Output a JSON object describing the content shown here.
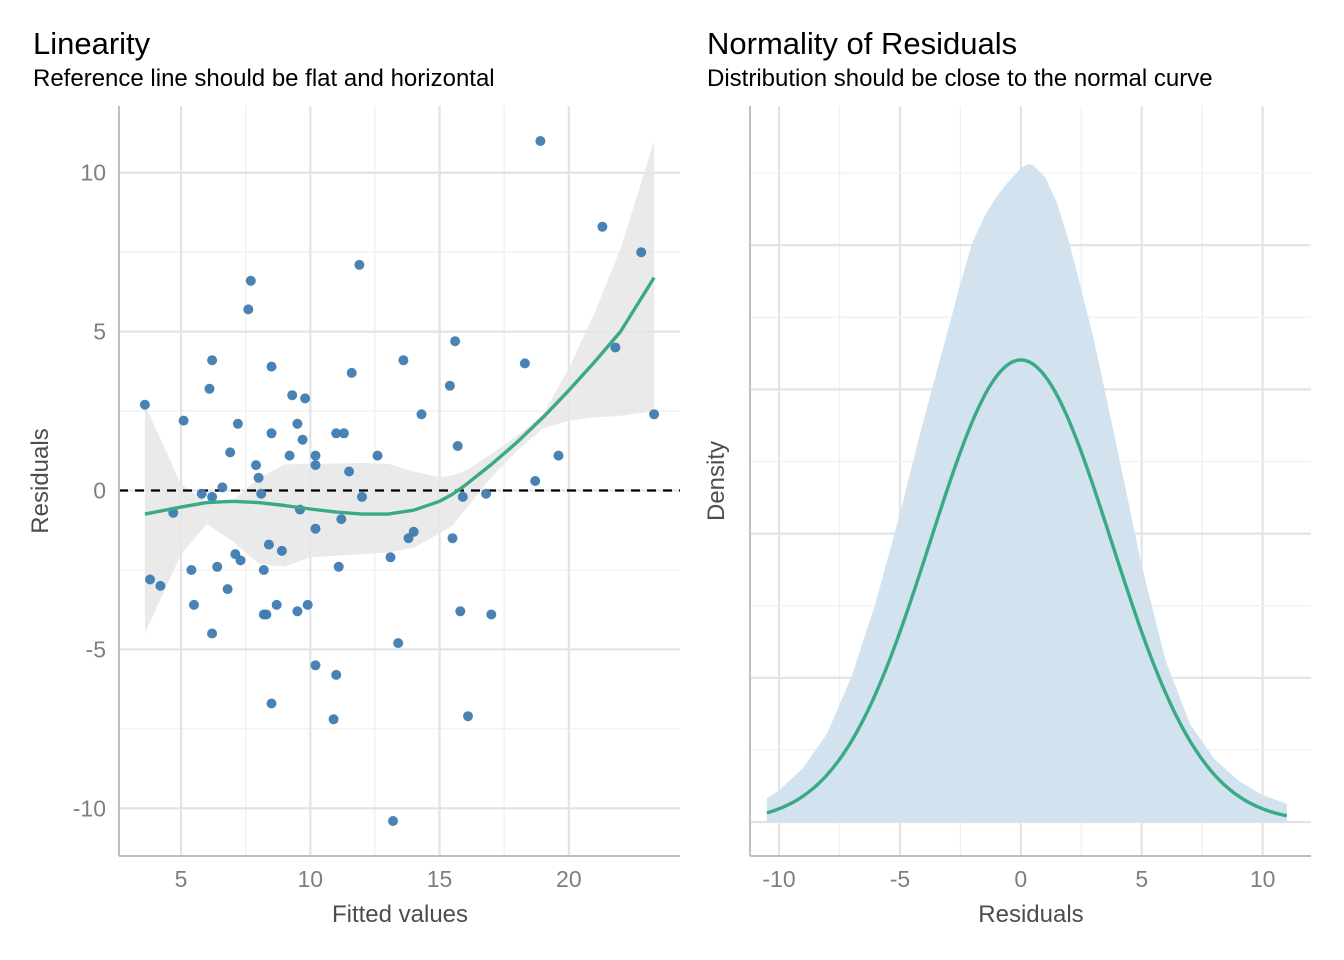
{
  "chart_data": [
    {
      "type": "scatter",
      "title": "Linearity",
      "subtitle": "Reference line should be flat and horizontal",
      "xlabel": "Fitted values",
      "ylabel": "Residuals",
      "xlim": [
        2.6,
        24.3
      ],
      "ylim": [
        -11.5,
        12.1
      ],
      "xticks": [
        5,
        10,
        15,
        20
      ],
      "xtick_labels": [
        "5",
        "10",
        "15",
        "20"
      ],
      "yticks": [
        -10,
        -5,
        0,
        5,
        10
      ],
      "ytick_labels": [
        "-10",
        "-5",
        "0",
        "5",
        "10"
      ],
      "grid": true,
      "reference_line": 0,
      "points": [
        [
          3.6,
          2.7
        ],
        [
          3.8,
          -2.8
        ],
        [
          4.2,
          -3.0
        ],
        [
          4.7,
          -0.7
        ],
        [
          5.1,
          2.2
        ],
        [
          5.4,
          -2.5
        ],
        [
          5.5,
          -3.6
        ],
        [
          5.8,
          -0.1
        ],
        [
          6.1,
          3.2
        ],
        [
          6.2,
          4.1
        ],
        [
          6.2,
          -4.5
        ],
        [
          6.2,
          -0.2
        ],
        [
          6.4,
          -2.4
        ],
        [
          6.6,
          0.1
        ],
        [
          6.8,
          -3.1
        ],
        [
          6.9,
          1.2
        ],
        [
          7.1,
          -2.0
        ],
        [
          7.2,
          2.1
        ],
        [
          7.3,
          -2.2
        ],
        [
          7.6,
          5.7
        ],
        [
          7.7,
          6.6
        ],
        [
          7.9,
          0.8
        ],
        [
          8.0,
          0.4
        ],
        [
          8.1,
          -0.1
        ],
        [
          8.2,
          -2.5
        ],
        [
          8.2,
          -3.9
        ],
        [
          8.3,
          -3.9
        ],
        [
          8.4,
          -1.7
        ],
        [
          8.5,
          3.9
        ],
        [
          8.5,
          1.8
        ],
        [
          8.5,
          -6.7
        ],
        [
          8.7,
          -3.6
        ],
        [
          8.9,
          -1.9
        ],
        [
          9.2,
          1.1
        ],
        [
          9.3,
          3.0
        ],
        [
          9.5,
          -3.8
        ],
        [
          9.5,
          2.1
        ],
        [
          9.6,
          -0.6
        ],
        [
          9.7,
          1.6
        ],
        [
          9.8,
          2.9
        ],
        [
          9.9,
          -3.6
        ],
        [
          10.2,
          0.8
        ],
        [
          10.2,
          1.1
        ],
        [
          10.2,
          -1.2
        ],
        [
          10.2,
          -5.5
        ],
        [
          10.9,
          -7.2
        ],
        [
          11.0,
          1.8
        ],
        [
          11.0,
          -5.8
        ],
        [
          11.1,
          -2.4
        ],
        [
          11.2,
          -0.9
        ],
        [
          11.3,
          1.8
        ],
        [
          11.5,
          0.6
        ],
        [
          11.6,
          3.7
        ],
        [
          11.9,
          7.1
        ],
        [
          12.0,
          -0.2
        ],
        [
          12.6,
          1.1
        ],
        [
          13.1,
          -2.1
        ],
        [
          13.2,
          -10.4
        ],
        [
          13.4,
          -4.8
        ],
        [
          13.6,
          4.1
        ],
        [
          13.8,
          -1.5
        ],
        [
          14.0,
          -1.3
        ],
        [
          14.3,
          2.4
        ],
        [
          15.4,
          3.3
        ],
        [
          15.5,
          -1.5
        ],
        [
          15.6,
          4.7
        ],
        [
          15.7,
          1.4
        ],
        [
          15.8,
          -3.8
        ],
        [
          15.9,
          -0.2
        ],
        [
          16.1,
          -7.1
        ],
        [
          16.8,
          -0.1
        ],
        [
          17.0,
          -3.9
        ],
        [
          18.3,
          4.0
        ],
        [
          18.7,
          0.3
        ],
        [
          18.9,
          11.0
        ],
        [
          19.6,
          1.1
        ],
        [
          21.3,
          8.3
        ],
        [
          21.8,
          4.5
        ],
        [
          22.8,
          7.5
        ],
        [
          23.3,
          2.4
        ]
      ],
      "smooth": {
        "x": [
          3.6,
          5.0,
          6.0,
          7.0,
          8.0,
          9.0,
          10.0,
          11.0,
          12.0,
          13.0,
          14.0,
          15.0,
          15.5,
          16.0,
          17.0,
          18.0,
          19.0,
          20.0,
          21.0,
          22.0,
          23.3
        ],
        "y": [
          -0.74,
          -0.52,
          -0.38,
          -0.34,
          -0.38,
          -0.47,
          -0.58,
          -0.68,
          -0.74,
          -0.74,
          -0.62,
          -0.34,
          -0.12,
          0.17,
          0.82,
          1.52,
          2.3,
          3.15,
          4.05,
          5.0,
          6.7
        ],
        "upper": [
          2.7,
          0.2,
          -0.35,
          -0.3,
          0.38,
          0.82,
          0.84,
          0.85,
          0.87,
          0.84,
          0.6,
          0.42,
          0.48,
          0.62,
          1.15,
          1.72,
          2.4,
          3.85,
          5.6,
          7.6,
          11.0
        ],
        "lower": [
          -4.5,
          -2.0,
          -1.05,
          -1.6,
          -2.3,
          -2.4,
          -2.1,
          -2.05,
          -2.0,
          -1.95,
          -1.8,
          -1.35,
          -1.1,
          -0.6,
          0.42,
          1.25,
          1.95,
          2.2,
          2.3,
          2.35,
          2.5
        ]
      },
      "colors": {
        "points": "#3f7bb1",
        "smooth": "#3aaa85",
        "band": "#e6e6e6",
        "reference": "#000000"
      }
    },
    {
      "type": "area",
      "title": "Normality of Residuals",
      "subtitle": "Distribution should be close to the normal curve",
      "xlabel": "Residuals",
      "ylabel": "Density",
      "xlim": [
        -11.2,
        12.0
      ],
      "xticks": [
        -10,
        -5,
        0,
        5,
        10
      ],
      "xtick_labels": [
        "-10",
        "-5",
        "0",
        "5",
        "10"
      ],
      "grid": true,
      "density": {
        "x": [
          -10.5,
          -10.0,
          -9.0,
          -8.0,
          -7.0,
          -6.0,
          -5.0,
          -4.0,
          -3.0,
          -2.5,
          -2.0,
          -1.5,
          -1.0,
          -0.5,
          0.0,
          0.3,
          0.5,
          1.0,
          1.5,
          2.0,
          3.0,
          4.0,
          5.0,
          6.0,
          7.0,
          8.0,
          9.0,
          10.0,
          11.0
        ],
        "y": [
          0.0055,
          0.0072,
          0.0125,
          0.0205,
          0.0335,
          0.0505,
          0.071,
          0.093,
          0.1135,
          0.124,
          0.1335,
          0.1395,
          0.144,
          0.1475,
          0.1505,
          0.1515,
          0.1512,
          0.1485,
          0.1425,
          0.1335,
          0.1115,
          0.0855,
          0.059,
          0.037,
          0.0225,
          0.0145,
          0.0095,
          0.0062,
          0.0042
        ]
      },
      "normal_curve": {
        "mean": 0,
        "sd": 3.75
      },
      "ylim": [
        0,
        0.166
      ],
      "colors": {
        "fill": "#d0e0ed",
        "curve": "#3aaa85"
      }
    }
  ]
}
